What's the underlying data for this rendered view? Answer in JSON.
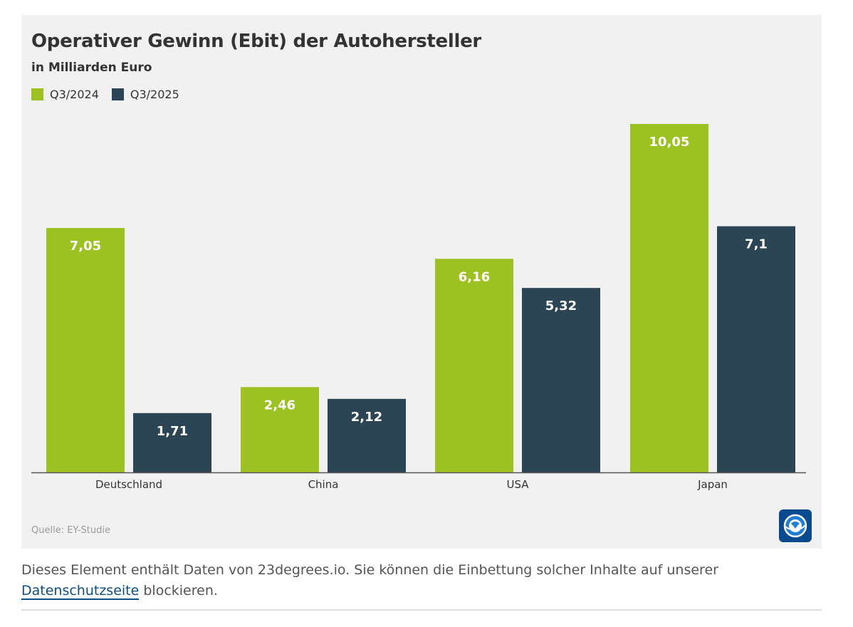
{
  "chart_data": {
    "type": "bar",
    "title": "Operativer Gewinn (Ebit) der Autohersteller",
    "subtitle": "in Milliarden Euro",
    "categories": [
      "Deutschland",
      "China",
      "USA",
      "Japan"
    ],
    "series": [
      {
        "name": "Q3/2024",
        "color": "#9bc220",
        "values": [
          7.05,
          2.46,
          6.16,
          10.05
        ],
        "labels": [
          "7,05",
          "2,46",
          "6,16",
          "10,05"
        ]
      },
      {
        "name": "Q3/2025",
        "color": "#2b4555",
        "values": [
          1.71,
          2.12,
          5.32,
          7.1
        ],
        "labels": [
          "1,71",
          "2,12",
          "5,32",
          "7,1"
        ]
      }
    ],
    "ylim": [
      0,
      10.05
    ],
    "grid": false,
    "legend": "top-left"
  },
  "source": "Quelle: EY-Studie",
  "logo": {
    "icon": "tagesschau-globe-icon"
  },
  "footer": {
    "text_before": "Dieses Element enthält Daten von 23degrees.io. Sie können die Einbettung solcher Inhalte auf unserer ",
    "link_label": "Datenschutzseite",
    "text_after": " blockieren."
  },
  "colors": {
    "panel_background": "#f1f1f1",
    "text": "#333333",
    "link": "#0b4f86"
  }
}
